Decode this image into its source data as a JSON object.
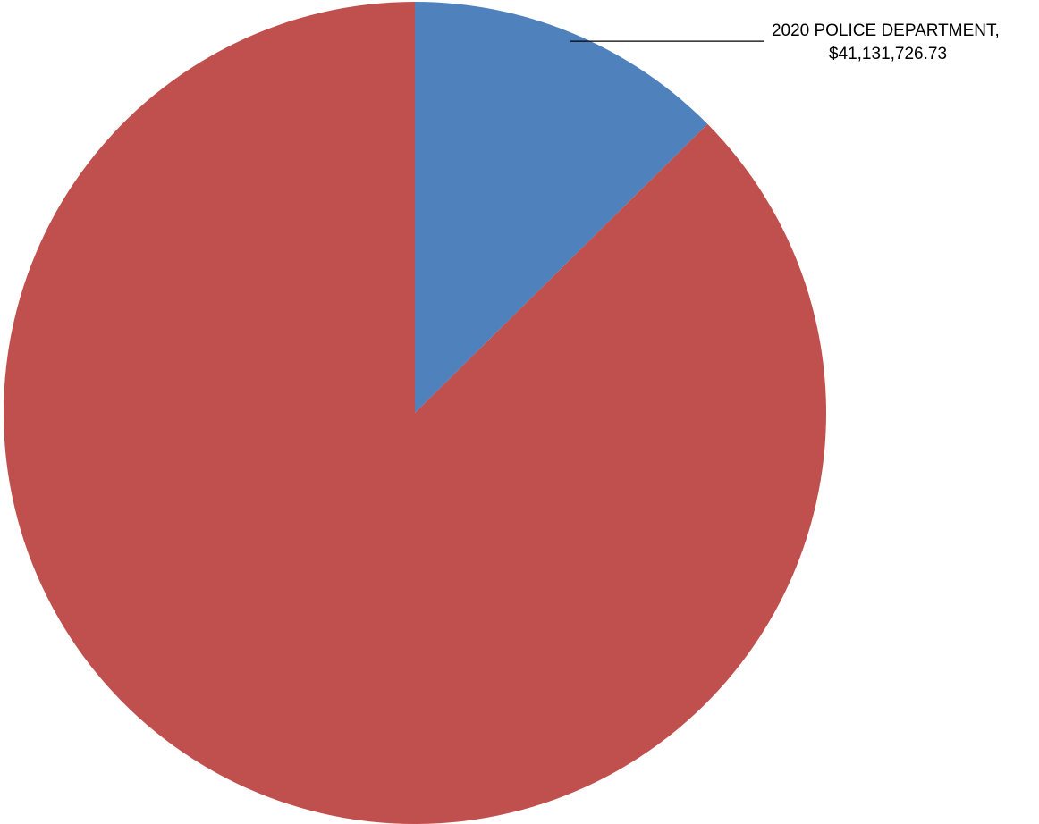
{
  "chart_data": {
    "type": "pie",
    "title": "",
    "start_angle_deg": 0,
    "direction": "clockwise",
    "slices": [
      {
        "name": "2020 POLICE DEPARTMENT",
        "value": 41131726.73,
        "label_line1": "2020 POLICE DEPARTMENT,",
        "label_line2": "$41,131,726.73",
        "color": "#4F81BD",
        "share_percent": 12.6
      },
      {
        "name": "",
        "value": 285300000,
        "label_line1": "",
        "label_line2": "",
        "color": "#C0504D",
        "share_percent": 87.4
      }
    ],
    "legend": "none"
  }
}
